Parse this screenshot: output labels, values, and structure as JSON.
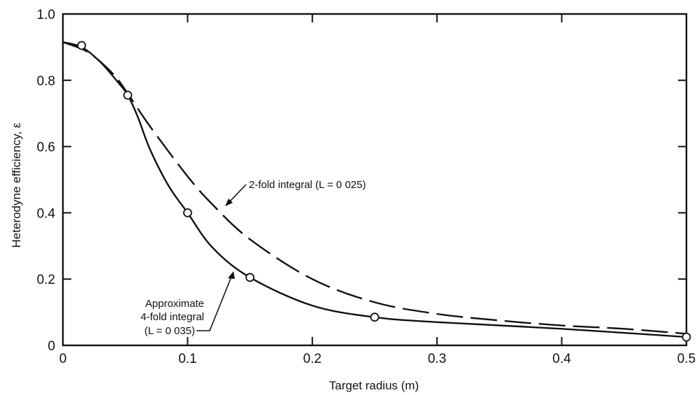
{
  "chart_data": {
    "type": "line",
    "title": "",
    "xlabel": "Target radius (m)",
    "ylabel": "Heterodyne efficiency, ε",
    "xlim": [
      0,
      0.5
    ],
    "ylim": [
      0,
      1.0
    ],
    "xticks": [
      "0",
      "0.1",
      "0.2",
      "0.3",
      "0.4",
      "0.5"
    ],
    "yticks": [
      "0",
      "0.2",
      "0.4",
      "0.6",
      "0.8",
      "1.0"
    ],
    "grid": false,
    "series": [
      {
        "style": "solid",
        "x": [
          0.0,
          0.015,
          0.03,
          0.045,
          0.052,
          0.06,
          0.07,
          0.085,
          0.1,
          0.12,
          0.15,
          0.2,
          0.25,
          0.3,
          0.4,
          0.5
        ],
        "y": [
          0.915,
          0.9,
          0.855,
          0.79,
          0.755,
          0.69,
          0.59,
          0.48,
          0.4,
          0.295,
          0.205,
          0.12,
          0.085,
          0.07,
          0.05,
          0.025
        ],
        "markers_x": [
          0.015,
          0.052,
          0.1,
          0.15,
          0.25,
          0.5
        ],
        "markers_y": [
          0.905,
          0.755,
          0.4,
          0.205,
          0.085,
          0.025
        ]
      },
      {
        "style": "dashed",
        "x": [
          0.0,
          0.02,
          0.04,
          0.052,
          0.07,
          0.1,
          0.12,
          0.15,
          0.2,
          0.25,
          0.3,
          0.35,
          0.4,
          0.45,
          0.5
        ],
        "y": [
          0.915,
          0.885,
          0.82,
          0.76,
          0.66,
          0.51,
          0.425,
          0.32,
          0.2,
          0.13,
          0.095,
          0.075,
          0.06,
          0.05,
          0.035
        ]
      }
    ],
    "annotations": [
      {
        "lines": [
          "2-fold integral (L = 0 025)"
        ]
      },
      {
        "lines": [
          "Approximate",
          "4-fold integral",
          "(L = 0 035)"
        ]
      }
    ]
  }
}
